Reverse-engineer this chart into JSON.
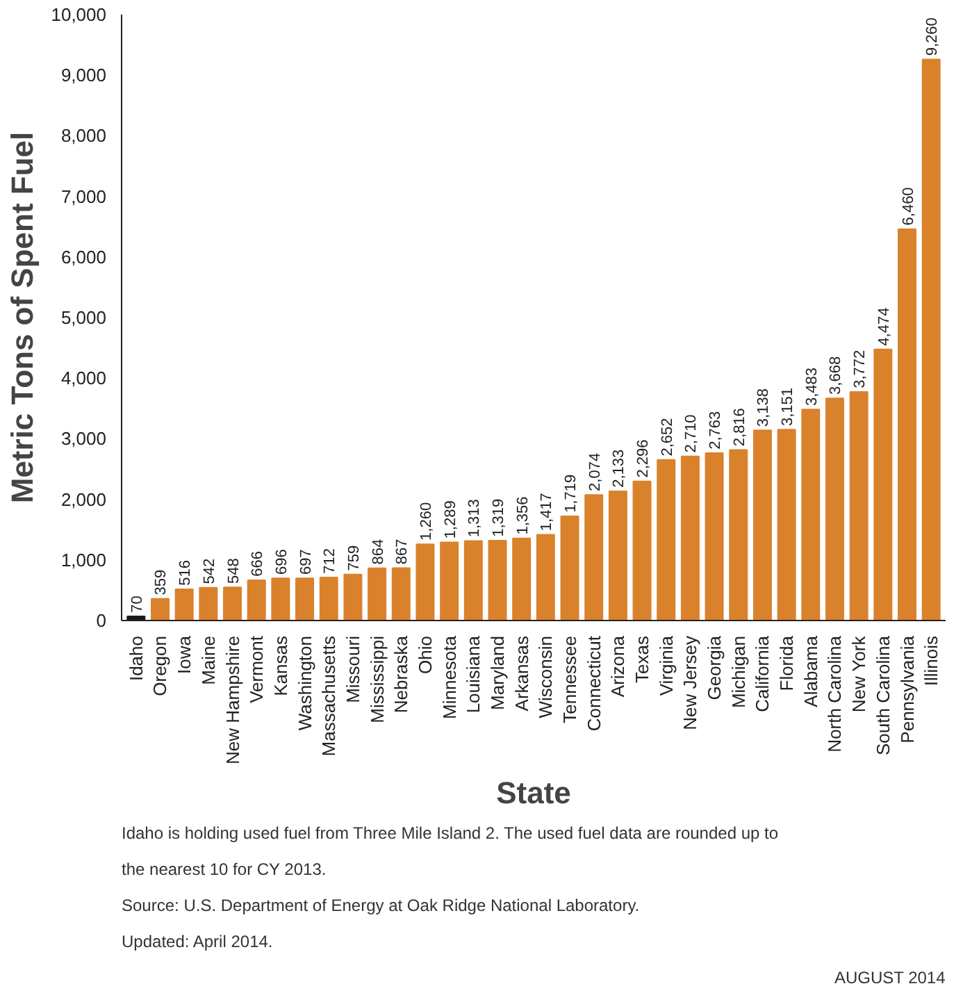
{
  "chart_data": {
    "type": "bar",
    "xlabel": "State",
    "ylabel": "Metric Tons of Spent Fuel",
    "categories": [
      "Idaho",
      "Oregon",
      "Iowa",
      "Maine",
      "New Hampshire",
      "Vermont",
      "Kansas",
      "Washington",
      "Massachusetts",
      "Missouri",
      "Mississippi",
      "Nebraska",
      "Ohio",
      "Minnesota",
      "Louisiana",
      "Maryland",
      "Arkansas",
      "Wisconsin",
      "Tennessee",
      "Connecticut",
      "Arizona",
      "Texas",
      "Virginia",
      "New Jersey",
      "Georgia",
      "Michigan",
      "California",
      "Florida",
      "Alabama",
      "North Carolina",
      "New York",
      "South Carolina",
      "Pennsylvania",
      "Illinois"
    ],
    "values": [
      70,
      359,
      516,
      542,
      548,
      666,
      696,
      697,
      712,
      759,
      864,
      867,
      1260,
      1289,
      1313,
      1319,
      1356,
      1417,
      1719,
      2074,
      2133,
      2296,
      2652,
      2710,
      2763,
      2816,
      3138,
      3151,
      3483,
      3668,
      3772,
      4474,
      6460,
      9260
    ],
    "value_labels": [
      "70",
      "359",
      "516",
      "542",
      "548",
      "666",
      "696",
      "697",
      "712",
      "759",
      "864",
      "867",
      "1,260",
      "1,289",
      "1,313",
      "1,319",
      "1,356",
      "1,417",
      "1,719",
      "2,074",
      "2,133",
      "2,296",
      "2,652",
      "2,710",
      "2,763",
      "2,816",
      "3,138",
      "3,151",
      "3,483",
      "3,668",
      "3,772",
      "4,474",
      "6,460",
      "9,260"
    ],
    "colors": [
      "#1a1a1a",
      "#d9822b",
      "#d9822b",
      "#d9822b",
      "#d9822b",
      "#d9822b",
      "#d9822b",
      "#d9822b",
      "#d9822b",
      "#d9822b",
      "#d9822b",
      "#d9822b",
      "#d9822b",
      "#d9822b",
      "#d9822b",
      "#d9822b",
      "#d9822b",
      "#d9822b",
      "#d9822b",
      "#d9822b",
      "#d9822b",
      "#d9822b",
      "#d9822b",
      "#d9822b",
      "#d9822b",
      "#d9822b",
      "#d9822b",
      "#d9822b",
      "#d9822b",
      "#d9822b",
      "#d9822b",
      "#d9822b",
      "#d9822b",
      "#d9822b"
    ],
    "ylim": [
      0,
      10000
    ],
    "yticks": [
      {
        "value": 0,
        "label": "0"
      },
      {
        "value": 1000,
        "label": "1,000"
      },
      {
        "value": 2000,
        "label": "2,000"
      },
      {
        "value": 3000,
        "label": "3,000"
      },
      {
        "value": 4000,
        "label": "4,000"
      },
      {
        "value": 5000,
        "label": "5,000"
      },
      {
        "value": 6000,
        "label": "6,000"
      },
      {
        "value": 7000,
        "label": "7,000"
      },
      {
        "value": 8000,
        "label": "8,000"
      },
      {
        "value": 9000,
        "label": "9,000"
      },
      {
        "value": 10000,
        "label": "10,000"
      }
    ],
    "grid": false,
    "legend": false,
    "annotations": [
      "Idaho is holding used fuel from Three Mile Island 2. The used fuel data are rounded up to the nearest 10 for CY 2013.",
      "Source: U.S. Department of Energy at Oak Ridge National Laboratory.",
      "Updated: April 2014.",
      "AUGUST 2014"
    ]
  }
}
